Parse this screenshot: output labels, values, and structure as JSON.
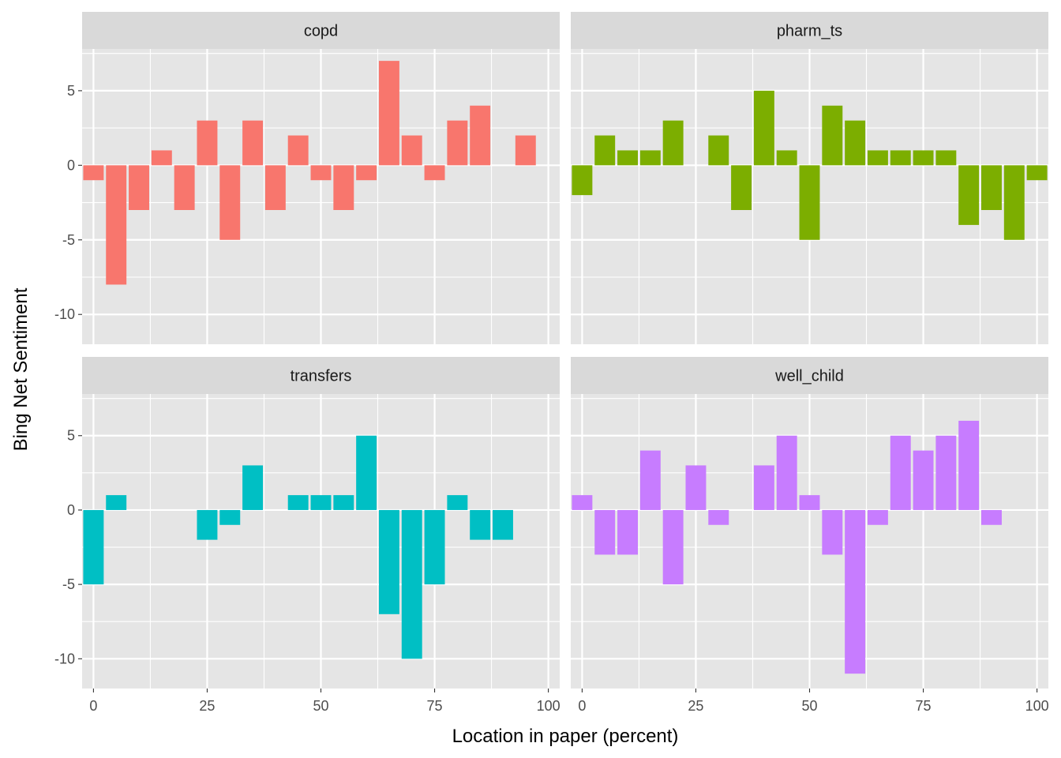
{
  "chart_data": {
    "type": "bar",
    "layout": "facet-grid-2x2",
    "xlabel": "Location in paper (percent)",
    "ylabel": "Bing Net Sentiment",
    "xlim": [
      -2.5,
      102.5
    ],
    "ylim": [
      -12,
      7.8
    ],
    "x_ticks": [
      0,
      25,
      50,
      75,
      100
    ],
    "x_tick_labels": [
      "0",
      "25",
      "50",
      "75",
      "100"
    ],
    "y_ticks": [
      -10,
      -5,
      0,
      5
    ],
    "y_tick_labels": [
      "-10",
      "-5",
      "0",
      "5"
    ],
    "panel_background": "#e5e5e5",
    "strip_background": "#d9d9d9",
    "grid": true,
    "legend": "none",
    "facets": [
      {
        "name": "copd",
        "color": "#f8766d",
        "x": [
          0,
          5,
          10,
          15,
          20,
          25,
          30,
          35,
          40,
          45,
          50,
          55,
          60,
          65,
          70,
          75,
          80,
          85,
          95
        ],
        "values": [
          -1,
          -8,
          -3,
          1,
          -3,
          3,
          -5,
          3,
          -3,
          2,
          -1,
          -3,
          -1,
          7,
          2,
          -1,
          3,
          4,
          2
        ]
      },
      {
        "name": "pharm_ts",
        "color": "#7cae00",
        "x": [
          0,
          5,
          10,
          15,
          20,
          30,
          35,
          40,
          45,
          50,
          55,
          60,
          65,
          70,
          75,
          80,
          85,
          90,
          95,
          100
        ],
        "values": [
          -2,
          2,
          1,
          1,
          3,
          2,
          -3,
          5,
          1,
          -5,
          4,
          3,
          1,
          1,
          1,
          1,
          -4,
          -3,
          -5,
          -1
        ]
      },
      {
        "name": "transfers",
        "color": "#00bfc4",
        "x": [
          0,
          5,
          25,
          30,
          35,
          45,
          50,
          55,
          60,
          65,
          70,
          75,
          80,
          85,
          90
        ],
        "values": [
          -5,
          1,
          -2,
          -1,
          3,
          1,
          1,
          1,
          5,
          -7,
          -10,
          -5,
          1,
          -2,
          -2
        ]
      },
      {
        "name": "well_child",
        "color": "#c77cff",
        "x": [
          0,
          5,
          10,
          15,
          20,
          25,
          30,
          40,
          45,
          50,
          55,
          60,
          65,
          70,
          75,
          80,
          85,
          90
        ],
        "values": [
          1,
          -3,
          -3,
          4,
          -5,
          3,
          -1,
          3,
          5,
          1,
          -3,
          -11,
          -1,
          5,
          4,
          5,
          6,
          -1
        ]
      }
    ]
  }
}
